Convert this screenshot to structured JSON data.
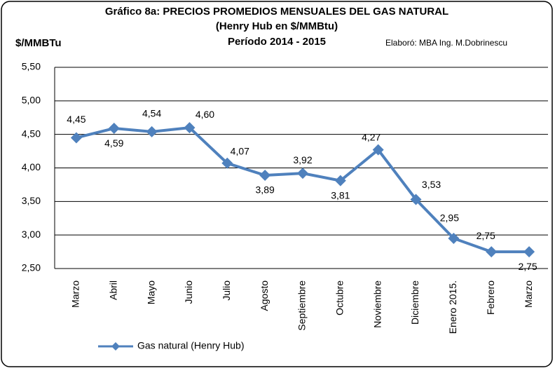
{
  "chart_data": {
    "type": "line",
    "title": "Gráfico 8a:  PRECIOS PROMEDIOS MENSUALES DEL GAS NATURAL",
    "subtitle": "(Henry Hub en $/MMBtu)",
    "period": "Período 2014 - 2015",
    "y_label": "$/MMBTu",
    "annotation": "Elaboró: MBA Ing. M.Dobrinescu",
    "categories": [
      "Marzo",
      "Abril",
      "Mayo",
      "Junio",
      "Julio",
      "Agosto",
      "Septiembre",
      "Octubre",
      "Noviembre",
      "Diciembre",
      "Enero 2015.",
      "Febrero",
      "Marzo"
    ],
    "series": [
      {
        "name": "Gas natural (Henry Hub)",
        "color": "#4f81bd",
        "values": [
          4.45,
          4.59,
          4.54,
          4.6,
          4.07,
          3.89,
          3.92,
          3.81,
          4.27,
          3.53,
          2.95,
          2.75,
          2.75
        ],
        "value_labels": [
          "4,45",
          "4,59",
          "4,54",
          "4,60",
          "4,07",
          "3,89",
          "3,92",
          "3,81",
          "4,27",
          "3,53",
          "2,95",
          "2,75",
          "2,75"
        ]
      }
    ],
    "ylim": [
      2.5,
      5.5
    ],
    "yticks": [
      {
        "value": 2.5,
        "label": "2,50"
      },
      {
        "value": 3,
        "label": "3,00"
      },
      {
        "value": 3.5,
        "label": "3,50"
      },
      {
        "value": 4,
        "label": "4,00"
      },
      {
        "value": 4.5,
        "label": "4,50"
      },
      {
        "value": 5,
        "label": "5,00"
      },
      {
        "value": 5.5,
        "label": "5,50"
      }
    ],
    "grid": true,
    "legend": "bottom-left"
  }
}
